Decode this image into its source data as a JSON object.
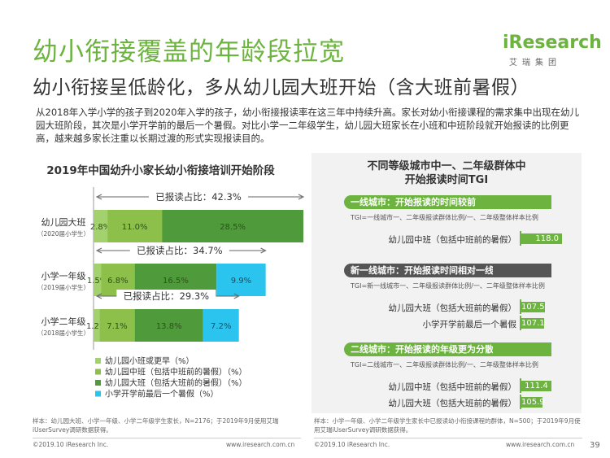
{
  "page": {
    "title": "幼小衔接覆盖的年龄段拉宽",
    "subtitle": "幼小衔接呈低龄化，多从幼儿园大班开始（含大班前暑假）",
    "description": "从2018年入学小学的孩子到2020年入学的孩子，幼小衔接报读率在这三年中持续升高。家长对幼小衔接课程的需求集中出现在幼儿园大班阶段，其次是小学开学前的最后一个暑假。对比小学一二年级学生，幼儿园大班家长在小班和中班阶段就开始报读的比例更高，越来越多家长注重以长期过渡的形式实现报读目的。",
    "logo_word": "iResearch",
    "logo_sub": "艾瑞集团",
    "page_number": "39",
    "colors": {
      "accent_green": "#6cb33f",
      "light_green": "#a2d16e",
      "mid_green": "#8cc04a",
      "dark_green": "#4f9a3a",
      "cyan": "#2bc4ee"
    }
  },
  "left_chart": {
    "title": "2019年中国幼升小家长幼小衔接培训开始阶段",
    "footnote": "样本：幼儿园大班、小学一年级、小学二年级学生家长，N=2176；于2019年9月使用艾瑞iUserSurvey调研数据获得。",
    "copyright": "©2019.10 iResearch Inc.",
    "site": "www.iresearch.com.cn"
  },
  "chart_data": {
    "type": "bar",
    "orientation": "horizontal-stacked",
    "title": "2019年中国幼升小家长幼小衔接培训开始阶段",
    "categories": [
      {
        "label": "幼儿园大班",
        "sub": "（2020届小学生）",
        "total_label": "已报读占比：42.3%"
      },
      {
        "label": "小学一年级",
        "sub": "（2019届小学生）",
        "total_label": "已报读占比：34.7%"
      },
      {
        "label": "小学二年级",
        "sub": "（2018届小学生）",
        "total_label": "已报读占比：29.3%"
      }
    ],
    "series": [
      {
        "name": "幼儿园小班或更早（%）",
        "color": "#a2d16e",
        "values": [
          2.8,
          1.5,
          1.2
        ],
        "labels": [
          "2.8%",
          "1.5%",
          "1.2%"
        ]
      },
      {
        "name": "幼儿园中班（包括中班前的暑假）（%）",
        "color": "#8cc04a",
        "values": [
          11.0,
          6.8,
          7.1
        ],
        "labels": [
          "11.0%",
          "6.8%",
          "7.1%"
        ]
      },
      {
        "name": "幼儿园大班（包括大班前的暑假）（%）",
        "color": "#4f9a3a",
        "values": [
          28.5,
          16.5,
          13.8
        ],
        "labels": [
          "28.5%",
          "16.5%",
          "13.8%"
        ]
      },
      {
        "name": "小学开学前最后一个暑假（%）",
        "color": "#2bc4ee",
        "values": [
          0,
          9.9,
          7.2
        ],
        "labels": [
          "",
          "9.9%",
          "7.2%"
        ]
      }
    ],
    "xlim": [
      0,
      42.3
    ],
    "legend": "bottom",
    "grid": false
  },
  "right_chart": {
    "title_line1": "不同等级城市中一、二年级群体中",
    "title_line2": "开始报读时间TGI",
    "groups": [
      {
        "tag": "一线城市：开始报读的时间较前",
        "style": "green",
        "note": "TGI=一线城市一、二年级报读群体比例/一、二年级整体样本比例",
        "rows": [
          {
            "label": "幼儿园中班（包括中班前的暑假）",
            "value": 118.0,
            "text": "118.0"
          }
        ]
      },
      {
        "tag": "新一线城市：开始报读时间相对一线更晚",
        "style": "dark",
        "note": "TGI=新一线城市一、二年级报读群体比例/一、二年级整体样本比例",
        "rows": [
          {
            "label": "幼儿园大班（包括大班前的暑假）",
            "value": 107.5,
            "text": "107.5"
          },
          {
            "label": "小学开学前最后一个暑假",
            "value": 107.1,
            "text": "107.1"
          }
        ]
      },
      {
        "tag": "二线城市：开始报读的年级更为分散",
        "style": "green",
        "note": "TGI=二线城市一、二年级报读群体比例/一、二年级整体样本比例",
        "rows": [
          {
            "label": "幼儿园中班（包括中班前的暑假）",
            "value": 111.4,
            "text": "111.4"
          },
          {
            "label": "幼儿园大班（包括大班前的暑假）",
            "value": 105.9,
            "text": "105.9"
          }
        ]
      }
    ],
    "footnote": "样本：小学一年级、小学二年级学生家长中已报读幼小衔接课程的群体，N=500；于2019年9月使用艾瑞iUserSurvey调研数据获得。",
    "copyright": "©2019.10 iResearch Inc.",
    "site": "www.iresearch.com.cn"
  }
}
